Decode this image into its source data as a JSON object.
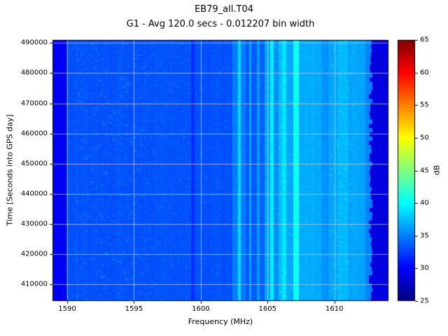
{
  "chart_data": {
    "type": "heatmap",
    "title": "EB79_all.T04",
    "subtitle": "G1 - Avg 120.0 secs - 0.012207 bin width",
    "xlabel": "Frequency (MHz)",
    "ylabel": "Time [Seconds into GPS day]",
    "colorbar_label": "dB",
    "colormap": "jet",
    "grid": true,
    "grid_color": "#d2d2d2",
    "spine_color": "#000000",
    "x_range": [
      1588.9,
      1614.05
    ],
    "y_range": [
      404500,
      491000
    ],
    "x_ticks": [
      1590,
      1595,
      1600,
      1605,
      1610
    ],
    "y_ticks": [
      410000,
      420000,
      430000,
      440000,
      450000,
      460000,
      470000,
      480000,
      490000
    ],
    "colorbar_range": [
      25,
      65
    ],
    "colorbar_ticks": [
      25,
      30,
      35,
      40,
      45,
      50,
      55,
      60,
      65
    ],
    "background_db": 33.2,
    "noise_db": 1.2,
    "bands": [
      [
        1588.9,
        1589.95,
        29.5
      ],
      [
        1589.95,
        1599.3,
        33.2
      ],
      [
        1599.3,
        1599.55,
        31.8
      ],
      [
        1599.55,
        1602.35,
        33.2
      ],
      [
        1602.35,
        1602.8,
        35.0
      ],
      [
        1602.8,
        1603.0,
        38.5
      ],
      [
        1603.0,
        1603.35,
        35.0
      ],
      [
        1603.35,
        1603.6,
        33.5
      ],
      [
        1603.6,
        1603.8,
        36.5
      ],
      [
        1603.8,
        1604.2,
        33.5
      ],
      [
        1604.2,
        1604.4,
        36.0
      ],
      [
        1604.4,
        1604.8,
        33.8
      ],
      [
        1604.8,
        1605.2,
        36.5
      ],
      [
        1605.2,
        1605.45,
        39.5
      ],
      [
        1605.45,
        1605.8,
        35.5
      ],
      [
        1605.8,
        1606.1,
        37.5
      ],
      [
        1606.1,
        1606.4,
        39.0
      ],
      [
        1606.4,
        1606.9,
        36.5
      ],
      [
        1606.9,
        1607.35,
        40.5
      ],
      [
        1607.35,
        1609.0,
        36.8
      ],
      [
        1609.0,
        1609.6,
        35.8
      ],
      [
        1609.6,
        1610.2,
        36.5
      ],
      [
        1610.2,
        1611.0,
        37.3
      ],
      [
        1611.0,
        1612.3,
        36.5
      ],
      [
        1612.3,
        1612.75,
        35.2
      ],
      [
        1612.75,
        1614.05,
        28.8
      ]
    ],
    "speckle_regions": [
      [
        1590.6,
        1596.6,
        0.015,
        3.0
      ],
      [
        1596.6,
        1599.2,
        0.004,
        3.0
      ],
      [
        1600.2,
        1602.3,
        0.003,
        3.0
      ],
      [
        1604.9,
        1607.5,
        0.02,
        1.5
      ],
      [
        1609.7,
        1611.6,
        0.02,
        2.2
      ]
    ]
  }
}
